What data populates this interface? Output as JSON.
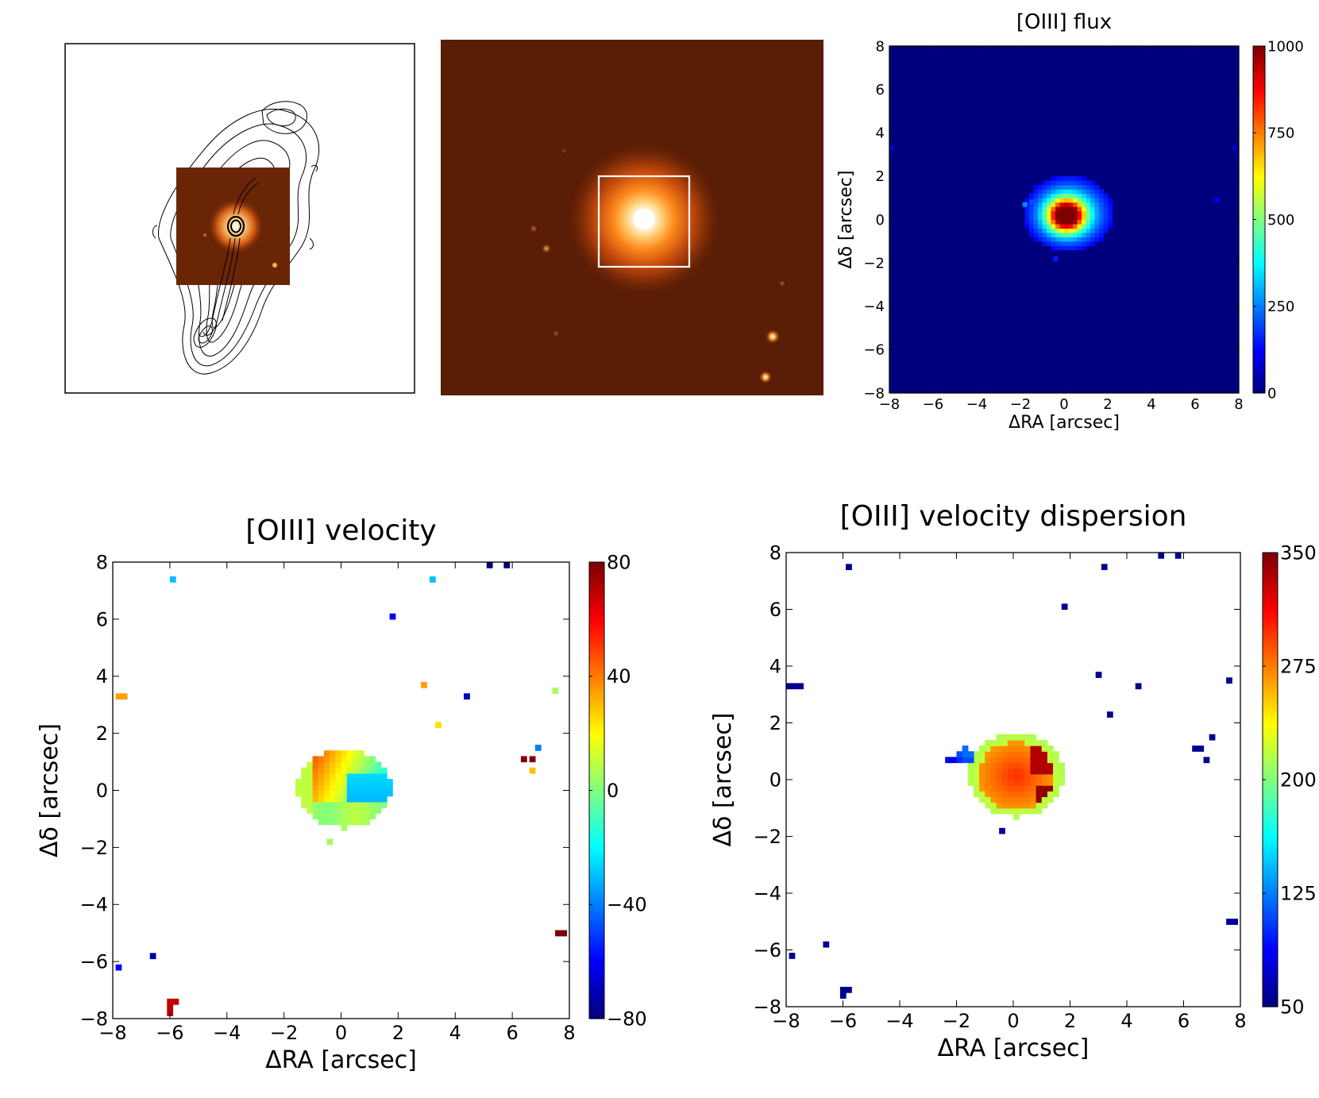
{
  "colors": {
    "jet": [
      "#00007f",
      "#0000ff",
      "#007fff",
      "#00ffff",
      "#7fff7f",
      "#ffff00",
      "#ff7f00",
      "#ff0000",
      "#7f0000"
    ],
    "hst_background": "#5a1d05",
    "hst_core": "#ffffff",
    "overlay_box": "#ffffff",
    "contours": "#000000"
  },
  "panels": {
    "radio_overlay": {
      "description_icon": "radio-contours-with-hst-inset"
    },
    "hst_image": {
      "description_icon": "hst-galaxy-image-with-box"
    }
  },
  "chart_data": [
    {
      "id": "flux",
      "type": "heatmap",
      "title": "[OIII] flux",
      "xlabel": "ΔRA [arcsec]",
      "ylabel": "Δδ [arcsec]",
      "xlim": [
        -8,
        8
      ],
      "ylim": [
        -8,
        8
      ],
      "xticks": [
        -8,
        -6,
        -4,
        -2,
        0,
        2,
        4,
        6,
        8
      ],
      "yticks": [
        -8,
        -6,
        -4,
        -2,
        0,
        2,
        4,
        6,
        8
      ],
      "xtick_labels": [
        "−8",
        "−6",
        "−4",
        "−2",
        "0",
        "2",
        "4",
        "6",
        "8"
      ],
      "ytick_labels": [
        "−8",
        "−6",
        "−4",
        "−2",
        "0",
        "2",
        "4",
        "6",
        "8"
      ],
      "colorbar": {
        "range": [
          0,
          1000
        ],
        "ticks": [
          0,
          250,
          500,
          750,
          1000
        ],
        "tick_labels": [
          "0",
          "250",
          "500",
          "750",
          "1000"
        ]
      },
      "background_value": 0,
      "blobs": [
        {
          "x": 0.1,
          "y": 0.2,
          "sx": 0.55,
          "sy": 0.5,
          "amp": 900
        },
        {
          "x": 0.2,
          "y": 0.3,
          "sx": 1.3,
          "sy": 1.1,
          "amp": 420
        }
      ],
      "cutoff": 120,
      "pixels": [
        {
          "x": 7.0,
          "y": 0.9,
          "v": 120
        },
        {
          "x": -7.9,
          "y": 3.3,
          "v": 80
        },
        {
          "x": 7.8,
          "y": 3.3,
          "v": 90
        },
        {
          "x": -1.8,
          "y": 0.7,
          "v": 260
        },
        {
          "x": -1.5,
          "y": 0.8,
          "v": 200
        },
        {
          "x": -0.4,
          "y": -1.8,
          "v": 150
        }
      ]
    },
    {
      "id": "velocity",
      "type": "heatmap",
      "title": "[OIII] velocity",
      "xlabel": "ΔRA [arcsec]",
      "ylabel": "Δδ [arcsec]",
      "xlim": [
        -8,
        8
      ],
      "ylim": [
        -8,
        8
      ],
      "xticks": [
        -8,
        -6,
        -4,
        -2,
        0,
        2,
        4,
        6,
        8
      ],
      "yticks": [
        -8,
        -6,
        -4,
        -2,
        0,
        2,
        4,
        6,
        8
      ],
      "xtick_labels": [
        "−8",
        "−6",
        "−4",
        "−2",
        "0",
        "2",
        "4",
        "6",
        "8"
      ],
      "ytick_labels": [
        "−8",
        "−6",
        "−4",
        "−2",
        "0",
        "2",
        "4",
        "6",
        "8"
      ],
      "colorbar": {
        "range": [
          -80,
          80
        ],
        "ticks": [
          -80,
          -40,
          0,
          40,
          80
        ],
        "tick_labels": [
          "−80",
          "−40",
          "0",
          "40",
          "80"
        ]
      },
      "pixels": [
        {
          "x": -5.9,
          "y": 7.4,
          "v": -30
        },
        {
          "x": 3.2,
          "y": 7.4,
          "v": -30
        },
        {
          "x": 5.2,
          "y": 7.9,
          "v": -80
        },
        {
          "x": 5.8,
          "y": 7.9,
          "v": -80
        },
        {
          "x": 1.8,
          "y": 6.1,
          "v": -60
        },
        {
          "x": 2.9,
          "y": 3.7,
          "v": 35
        },
        {
          "x": 4.4,
          "y": 3.3,
          "v": -70
        },
        {
          "x": -7.8,
          "y": 3.3,
          "v": 35
        },
        {
          "x": -7.6,
          "y": 3.3,
          "v": 35
        },
        {
          "x": 3.4,
          "y": 2.3,
          "v": 25
        },
        {
          "x": 7.5,
          "y": 3.5,
          "v": 5
        },
        {
          "x": 6.9,
          "y": 1.5,
          "v": -40
        },
        {
          "x": 6.4,
          "y": 1.1,
          "v": 80
        },
        {
          "x": 6.7,
          "y": 1.1,
          "v": 80
        },
        {
          "x": 6.7,
          "y": 0.7,
          "v": 30
        },
        {
          "x": -0.4,
          "y": -1.8,
          "v": 5
        },
        {
          "x": -7.8,
          "y": -6.2,
          "v": -60
        },
        {
          "x": -6.6,
          "y": -5.8,
          "v": -75
        },
        {
          "x": -6.0,
          "y": -7.4,
          "v": 70
        },
        {
          "x": -6.0,
          "y": -7.6,
          "v": 70
        },
        {
          "x": -6.0,
          "y": -7.8,
          "v": 70
        },
        {
          "x": -5.8,
          "y": -7.4,
          "v": 70
        },
        {
          "x": 7.6,
          "y": -5.0,
          "v": 80
        },
        {
          "x": 7.8,
          "y": -5.0,
          "v": 80
        }
      ]
    },
    {
      "id": "dispersion",
      "type": "heatmap",
      "title": "[OIII] velocity dispersion",
      "xlabel": "ΔRA [arcsec]",
      "ylabel": "Δδ [arcsec]",
      "xlim": [
        -8,
        8
      ],
      "ylim": [
        -8,
        8
      ],
      "xticks": [
        -8,
        -6,
        -4,
        -2,
        0,
        2,
        4,
        6,
        8
      ],
      "yticks": [
        -8,
        -6,
        -4,
        -2,
        0,
        2,
        4,
        6,
        8
      ],
      "xtick_labels": [
        "−8",
        "−6",
        "−4",
        "−2",
        "0",
        "2",
        "4",
        "6",
        "8"
      ],
      "ytick_labels": [
        "−8",
        "−6",
        "−4",
        "−2",
        "0",
        "2",
        "4",
        "6",
        "8"
      ],
      "colorbar": {
        "range": [
          50,
          350
        ],
        "ticks": [
          50,
          125,
          200,
          275,
          350
        ],
        "tick_labels": [
          "50",
          "125",
          "200",
          "275",
          "350"
        ]
      },
      "pixels": [
        {
          "x": -5.8,
          "y": 7.5,
          "v": 55
        },
        {
          "x": 3.2,
          "y": 7.5,
          "v": 55
        },
        {
          "x": 5.2,
          "y": 7.9,
          "v": 55
        },
        {
          "x": 5.8,
          "y": 7.9,
          "v": 55
        },
        {
          "x": 1.8,
          "y": 6.1,
          "v": 55
        },
        {
          "x": 3.0,
          "y": 3.7,
          "v": 55
        },
        {
          "x": 4.4,
          "y": 3.3,
          "v": 55
        },
        {
          "x": 3.4,
          "y": 2.3,
          "v": 55
        },
        {
          "x": -7.9,
          "y": 3.3,
          "v": 55
        },
        {
          "x": -7.7,
          "y": 3.3,
          "v": 55
        },
        {
          "x": -7.5,
          "y": 3.3,
          "v": 55
        },
        {
          "x": 7.6,
          "y": 3.5,
          "v": 55
        },
        {
          "x": 7.0,
          "y": 1.5,
          "v": 55
        },
        {
          "x": 6.4,
          "y": 1.1,
          "v": 55
        },
        {
          "x": 6.6,
          "y": 1.1,
          "v": 55
        },
        {
          "x": 6.8,
          "y": 0.7,
          "v": 55
        },
        {
          "x": -0.4,
          "y": -1.8,
          "v": 55
        },
        {
          "x": -7.8,
          "y": -6.2,
          "v": 55
        },
        {
          "x": -6.6,
          "y": -5.8,
          "v": 55
        },
        {
          "x": -6.0,
          "y": -7.4,
          "v": 55
        },
        {
          "x": -6.0,
          "y": -7.6,
          "v": 55
        },
        {
          "x": -5.8,
          "y": -7.4,
          "v": 55
        },
        {
          "x": 7.6,
          "y": -5.0,
          "v": 55
        },
        {
          "x": 7.8,
          "y": -5.0,
          "v": 55
        },
        {
          "x": -2.3,
          "y": 0.7,
          "v": 80
        },
        {
          "x": -2.1,
          "y": 0.7,
          "v": 80
        },
        {
          "x": -1.9,
          "y": 0.7,
          "v": 100
        },
        {
          "x": -1.9,
          "y": 0.9,
          "v": 110
        },
        {
          "x": -1.7,
          "y": 0.7,
          "v": 110
        },
        {
          "x": -1.7,
          "y": 0.9,
          "v": 120
        },
        {
          "x": -1.7,
          "y": 1.1,
          "v": 120
        },
        {
          "x": -1.5,
          "y": 0.7,
          "v": 110
        },
        {
          "x": -1.5,
          "y": 0.9,
          "v": 120
        }
      ]
    }
  ]
}
